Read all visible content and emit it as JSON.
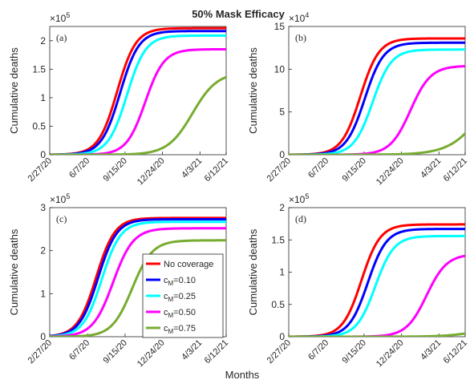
{
  "figure": {
    "title": "50% Mask Efficacy",
    "xlabel": "Months"
  },
  "colors": {
    "no_coverage": "#ff0000",
    "cM_0.10": "#0000ff",
    "cM_0.25": "#00ffff",
    "cM_0.50": "#ff00ff",
    "cM_0.75": "#77ac30"
  },
  "legend": {
    "placement": "inside bottom-right of panel (c)",
    "entries": [
      "No coverage",
      "c_M=0.10",
      "c_M=0.25",
      "c_M=0.50",
      "c_M=0.75"
    ]
  },
  "chart_data": [
    {
      "type": "line",
      "panel": "(a)",
      "ylabel": "Cumulative deaths",
      "exponent": "×10^5",
      "x_tick_labels": [
        "2/27/20",
        "6/7/20",
        "9/15/20",
        "12/24/20",
        "4/3/21",
        "6/12/21"
      ],
      "ylim": [
        0,
        2.25
      ],
      "y_ticks": [
        0,
        0.5,
        1,
        1.5,
        2
      ],
      "series": [
        {
          "name": "No coverage",
          "values_plateau": 2.22,
          "midpoint_date": "8/25/20"
        },
        {
          "name": "c_M=0.10",
          "values_plateau": 2.17,
          "midpoint_date": "9/2/20"
        },
        {
          "name": "c_M=0.25",
          "values_plateau": 2.09,
          "midpoint_date": "9/20/20"
        },
        {
          "name": "c_M=0.50",
          "values_plateau": 1.85,
          "midpoint_date": "11/8/20"
        },
        {
          "name": "c_M=0.75",
          "values_plateau": 1.45,
          "midpoint_date": "3/14/21"
        }
      ]
    },
    {
      "type": "line",
      "panel": "(b)",
      "ylabel": "Cumulative deaths",
      "exponent": "×10^4",
      "x_tick_labels": [
        "2/27/20",
        "6/7/20",
        "9/15/20",
        "12/24/20",
        "4/3/21",
        "6/12/21"
      ],
      "ylim": [
        0,
        15
      ],
      "y_ticks": [
        0,
        5,
        10,
        15
      ],
      "series": [
        {
          "name": "No coverage",
          "values_plateau": 13.6,
          "midpoint_date": "9/5/20"
        },
        {
          "name": "c_M=0.10",
          "values_plateau": 13.1,
          "midpoint_date": "9/17/20"
        },
        {
          "name": "c_M=0.25",
          "values_plateau": 12.3,
          "midpoint_date": "10/8/20"
        },
        {
          "name": "c_M=0.50",
          "values_plateau": 10.4,
          "midpoint_date": "1/17/21"
        },
        {
          "name": "c_M=0.75",
          "values_at_end": 2.5,
          "end_date": "6/12/21"
        }
      ]
    },
    {
      "type": "line",
      "panel": "(c)",
      "ylabel": "Cumulative deaths",
      "exponent": "×10^5",
      "x_tick_labels": [
        "2/27/20",
        "6/7/20",
        "9/15/20",
        "12/24/20",
        "4/3/21",
        "6/12/21"
      ],
      "ylim": [
        0,
        3
      ],
      "y_ticks": [
        0,
        1,
        2,
        3
      ],
      "series": [
        {
          "name": "No coverage",
          "values_plateau": 2.76,
          "midpoint_date": "6/30/20"
        },
        {
          "name": "c_M=0.10",
          "values_plateau": 2.73,
          "midpoint_date": "7/5/20"
        },
        {
          "name": "c_M=0.25",
          "values_plateau": 2.67,
          "midpoint_date": "7/15/20"
        },
        {
          "name": "c_M=0.50",
          "values_plateau": 2.52,
          "midpoint_date": "8/14/20"
        },
        {
          "name": "c_M=0.75",
          "values_plateau": 2.24,
          "midpoint_date": "10/4/20"
        }
      ]
    },
    {
      "type": "line",
      "panel": "(d)",
      "ylabel": "Cumulative deaths",
      "exponent": "×10^5",
      "x_tick_labels": [
        "2/27/20",
        "6/7/20",
        "9/15/20",
        "12/24/20",
        "4/3/21",
        "6/12/21"
      ],
      "ylim": [
        0,
        2
      ],
      "y_ticks": [
        0,
        0.5,
        1,
        1.5,
        2
      ],
      "series": [
        {
          "name": "No coverage",
          "values_plateau": 1.74,
          "midpoint_date": "9/8/20"
        },
        {
          "name": "c_M=0.10",
          "values_plateau": 1.67,
          "midpoint_date": "9/25/20"
        },
        {
          "name": "c_M=0.25",
          "values_plateau": 1.56,
          "midpoint_date": "10/15/20"
        },
        {
          "name": "c_M=0.50",
          "values_plateau": 1.28,
          "midpoint_date": "3/1/21"
        },
        {
          "name": "c_M=0.75",
          "values_at_end": 0.05,
          "end_date": "6/12/21"
        }
      ]
    }
  ]
}
